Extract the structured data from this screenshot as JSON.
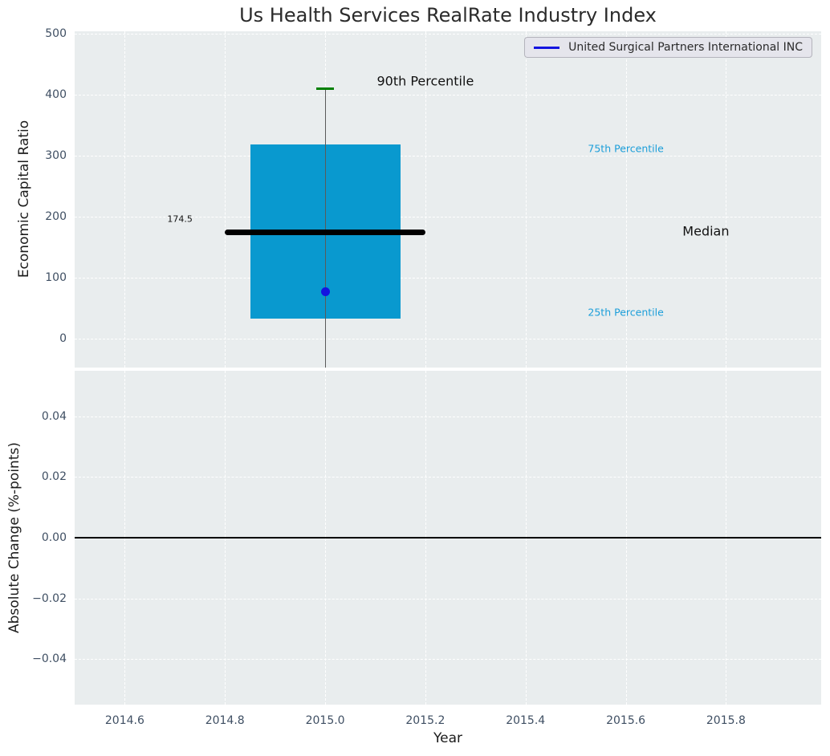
{
  "title": "Us Health Services RealRate Industry Index",
  "colors": {
    "figure_bg": "#ffffff",
    "plot_bg": "#e9edee",
    "grid": "#ffffff",
    "box_fill": "#0999cf",
    "median": "#000000",
    "whisker": "#5a5a5a",
    "cap_90th": "#008000",
    "company_dot": "#1414e0",
    "zero_line": "#000000",
    "tick_label": "#3f4f63",
    "axis_label": "#1c1c1c",
    "title_text": "#2b2b2b",
    "percentile_label": "#1b9ed9",
    "annotation_dark": "#111111",
    "legend_bg": "#e5e5ec",
    "legend_border": "#b4b4bc",
    "legend_text": "#2b2b2b"
  },
  "chart_data": [
    {
      "type": "box",
      "title": "",
      "xlabel": "",
      "ylabel": "Economic Capital Ratio",
      "xlim": [
        2014.5,
        2015.99
      ],
      "ylim": [
        -47.5,
        504
      ],
      "grid": "dashed-white",
      "xticks": [
        {
          "v": 2014.6,
          "label": "2014.6"
        },
        {
          "v": 2014.8,
          "label": "2014.8"
        },
        {
          "v": 2015.0,
          "label": "2015.0"
        },
        {
          "v": 2015.2,
          "label": "2015.2"
        },
        {
          "v": 2015.4,
          "label": "2015.4"
        },
        {
          "v": 2015.6,
          "label": "2015.6"
        },
        {
          "v": 2015.8,
          "label": "2015.8"
        }
      ],
      "yticks": [
        {
          "v": 0,
          "label": "0"
        },
        {
          "v": 100,
          "label": "100"
        },
        {
          "v": 200,
          "label": "200"
        },
        {
          "v": 300,
          "label": "300"
        },
        {
          "v": 400,
          "label": "400"
        },
        {
          "v": 500,
          "label": "500"
        }
      ],
      "legend": {
        "label": "United Surgical Partners International INC",
        "line_color": "#1414e0",
        "position": "upper right"
      },
      "box": {
        "x_center": 2015.0,
        "box_left": 2014.85,
        "box_right": 2015.15,
        "p25": 33,
        "p75": 318,
        "median": 174.5,
        "p90": 410,
        "median_left": 2014.8,
        "median_right": 2015.2,
        "cap_half_width": 0.018,
        "whisker_extends_below_axis": true,
        "company_value": 77
      },
      "annotations": [
        {
          "text": "90th Percentile",
          "x": 2015.2,
          "y": 422,
          "color": "annotation_dark",
          "size": 16
        },
        {
          "text": "75th Percentile",
          "x": 2015.6,
          "y": 312,
          "color": "percentile_label",
          "size": 12.5
        },
        {
          "text": "Median",
          "x": 2015.76,
          "y": 176,
          "color": "annotation_dark",
          "size": 16
        },
        {
          "text": "25th Percentile",
          "x": 2015.6,
          "y": 43,
          "color": "percentile_label",
          "size": 12.5
        },
        {
          "text": "174.5",
          "x": 2014.71,
          "y": 196,
          "color": "annotation_dark",
          "size": 11
        }
      ]
    },
    {
      "type": "line",
      "title": "",
      "xlabel": "Year",
      "ylabel": "Absolute Change (%-points)",
      "xlim": [
        2014.5,
        2015.99
      ],
      "ylim": [
        -0.055,
        0.055
      ],
      "grid": "dashed-white",
      "zero_line": 0.0,
      "xticks": [
        {
          "v": 2014.6,
          "label": "2014.6"
        },
        {
          "v": 2014.8,
          "label": "2014.8"
        },
        {
          "v": 2015.0,
          "label": "2015.0"
        },
        {
          "v": 2015.2,
          "label": "2015.2"
        },
        {
          "v": 2015.4,
          "label": "2015.4"
        },
        {
          "v": 2015.6,
          "label": "2015.6"
        },
        {
          "v": 2015.8,
          "label": "2015.8"
        }
      ],
      "yticks": [
        {
          "v": 0.04,
          "label": "0.04"
        },
        {
          "v": 0.02,
          "label": "0.02"
        },
        {
          "v": 0.0,
          "label": "0.00"
        },
        {
          "v": -0.02,
          "label": "−0.02"
        },
        {
          "v": -0.04,
          "label": "−0.04"
        }
      ]
    }
  ]
}
